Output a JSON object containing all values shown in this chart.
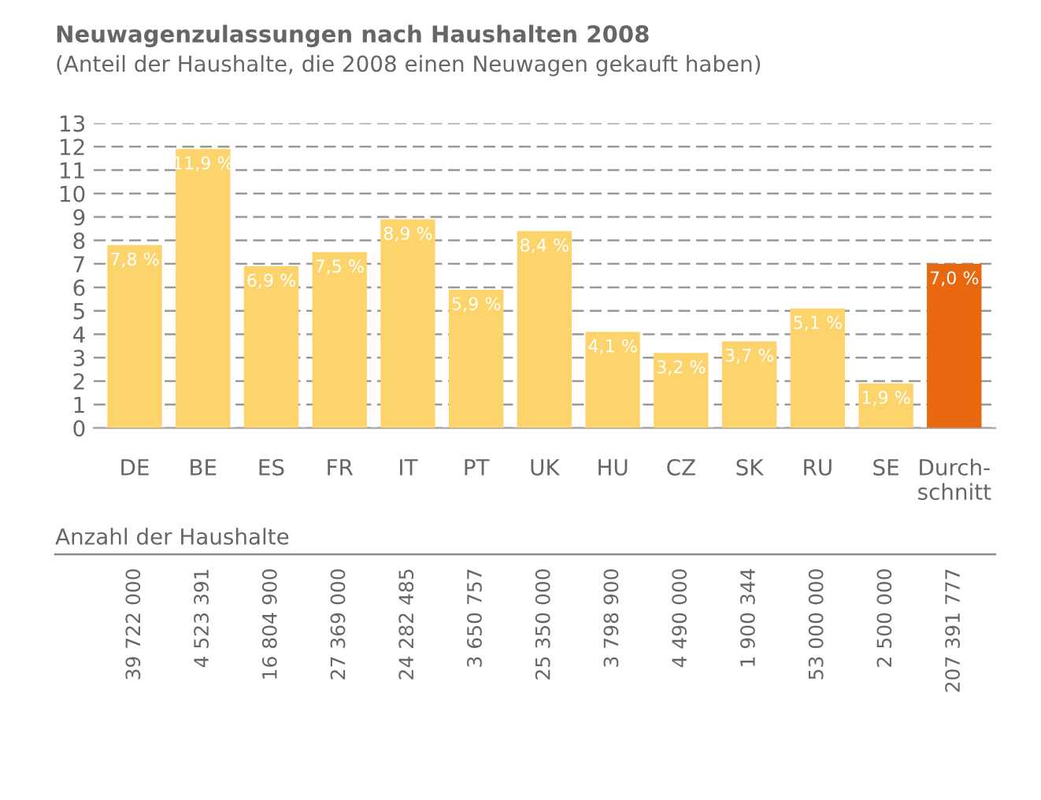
{
  "chart_data": {
    "type": "bar",
    "title": "Neuwagenzulassungen nach Haushalten 2008",
    "subtitle": "(Anteil der Haushalte, die 2008 einen Neuwagen gekauft haben)",
    "categories": [
      "DE",
      "BE",
      "ES",
      "FR",
      "IT",
      "PT",
      "UK",
      "HU",
      "CZ",
      "SK",
      "RU",
      "SE",
      "Durch-\nschnitt"
    ],
    "values": [
      7.8,
      11.9,
      6.9,
      7.5,
      8.9,
      5.9,
      8.4,
      4.1,
      3.2,
      3.7,
      5.1,
      1.9,
      7.0
    ],
    "value_labels": [
      "7,8 %",
      "11,9 %",
      "6,9 %",
      "7,5 %",
      "8,9 %",
      "5,9 %",
      "8,4 %",
      "4,1 %",
      "3,2 %",
      "3,7 %",
      "5,1 %",
      "1,9 %",
      "7,0 %"
    ],
    "colors": [
      "#fdd36b",
      "#fdd36b",
      "#fdd36b",
      "#fdd36b",
      "#fdd36b",
      "#fdd36b",
      "#fdd36b",
      "#fdd36b",
      "#fdd36b",
      "#fdd36b",
      "#fdd36b",
      "#fdd36b",
      "#e8680f"
    ],
    "ylim": [
      0,
      13
    ],
    "yticks": [
      0,
      1,
      2,
      3,
      4,
      5,
      6,
      7,
      8,
      9,
      10,
      11,
      12,
      13
    ],
    "grid": "y",
    "annotations": [
      "Anzahl der Haushalte",
      "39 722 000",
      "4 523 391",
      "16 804 900",
      "27 369 000",
      "24 282 485",
      "3 650 757",
      "25 350 000",
      "3 798 900",
      "4 490 000",
      "1 900 344",
      "53 000 000",
      "2 500 000",
      "207 391 777"
    ]
  }
}
